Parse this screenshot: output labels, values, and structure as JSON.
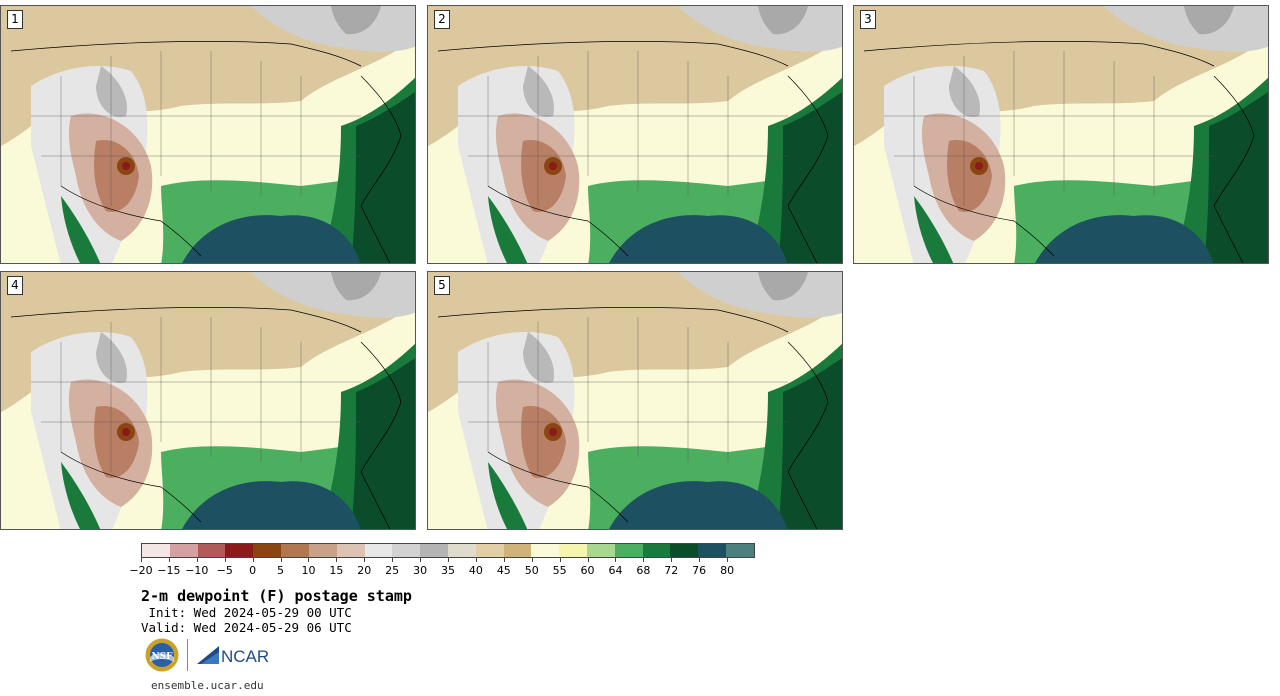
{
  "panels": [
    {
      "number": "1"
    },
    {
      "number": "2"
    },
    {
      "number": "3"
    },
    {
      "number": "4"
    },
    {
      "number": "5"
    }
  ],
  "colorbar": {
    "colors": [
      "#f5e6e6",
      "#d4a0a0",
      "#b05a5a",
      "#8c1a1a",
      "#8b4513",
      "#b07850",
      "#c9a088",
      "#dcc3b4",
      "#e8e8e8",
      "#d2d2d2",
      "#b4b4b4",
      "#e0dccb",
      "#e2cfa6",
      "#d0b37a",
      "#fbfad8",
      "#f5f5b0",
      "#a8d890",
      "#4caf60",
      "#1a7a3c",
      "#0b4d2a",
      "#1d5060",
      "#4d7f80"
    ],
    "tick_labels": [
      "−20",
      "−15",
      "−10",
      "−5",
      "0",
      "5",
      "10",
      "15",
      "20",
      "25",
      "30",
      "35",
      "40",
      "45",
      "50",
      "55",
      "60",
      "64",
      "68",
      "72",
      "76",
      "80"
    ]
  },
  "text": {
    "title": "2-m dewpoint (F) postage stamp",
    "init": " Init: Wed 2024-05-29 00 UTC",
    "valid": "Valid: Wed 2024-05-29 06 UTC",
    "nsf_logo": "NSF",
    "ncar_logo": "NCAR",
    "footer": "ensemble.ucar.edu"
  }
}
